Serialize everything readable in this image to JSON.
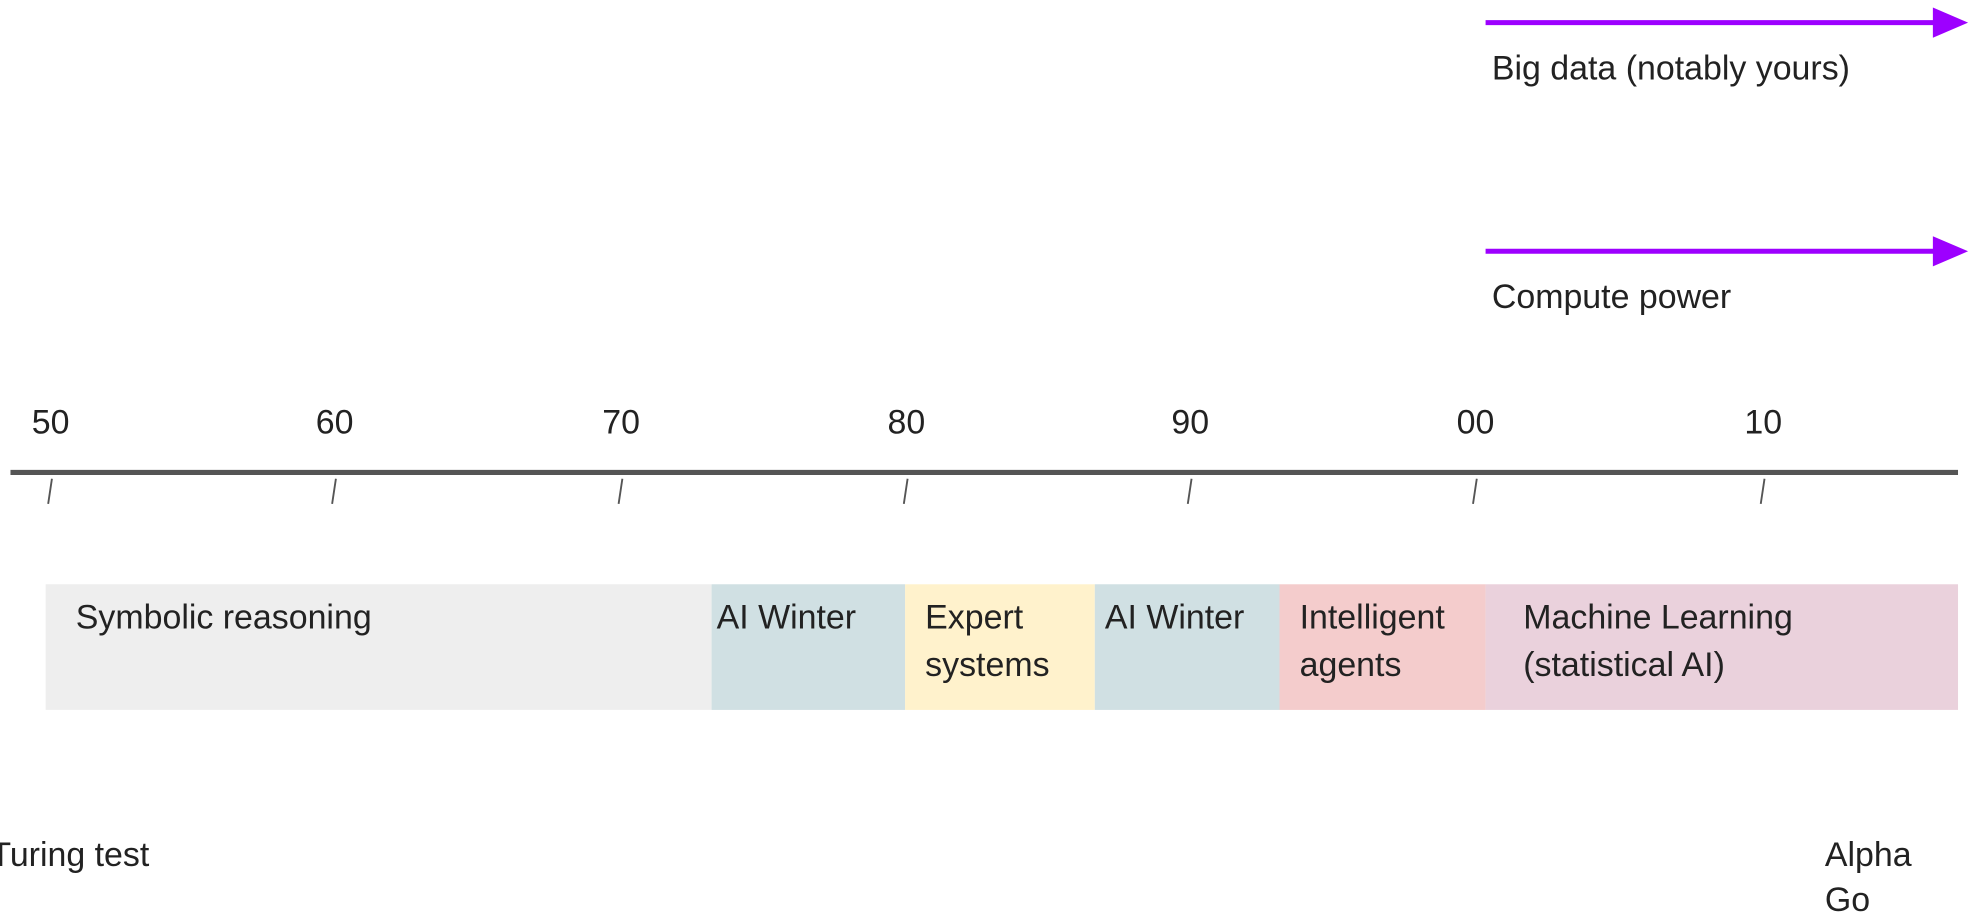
{
  "arrows": [
    {
      "label": "Big data (notably yours)"
    },
    {
      "label": "Compute power"
    }
  ],
  "axis": {
    "ticks": [
      "50",
      "60",
      "70",
      "80",
      "90",
      "00",
      "10"
    ]
  },
  "eras": [
    {
      "lines": [
        "Symbolic reasoning"
      ]
    },
    {
      "lines": [
        "AI Winter"
      ]
    },
    {
      "lines": [
        "Expert",
        "systems"
      ]
    },
    {
      "lines": [
        "AI Winter"
      ]
    },
    {
      "lines": [
        "Intelligent",
        "agents"
      ]
    },
    {
      "lines": [
        "Machine Learning",
        "(statistical AI)"
      ]
    }
  ],
  "events": [
    {
      "lines": [
        "Turing test"
      ]
    },
    {
      "lines": [
        "Alpha",
        "Go"
      ]
    }
  ]
}
